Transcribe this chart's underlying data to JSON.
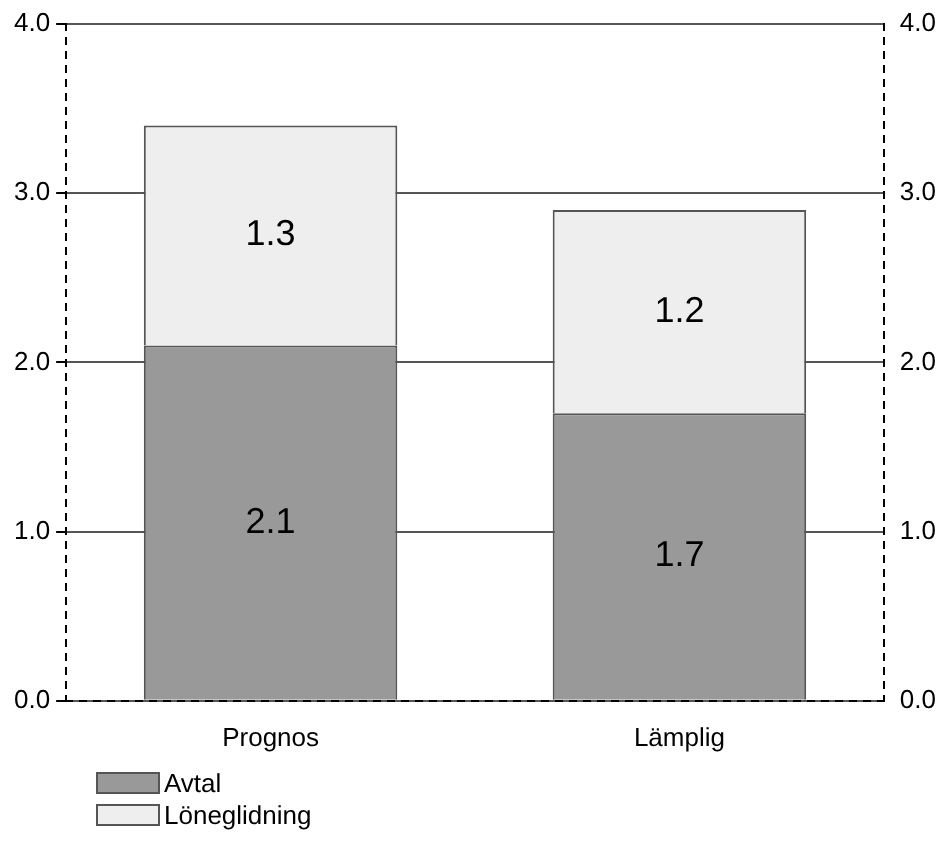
{
  "chart_data": {
    "type": "bar",
    "stacked": true,
    "categories": [
      "Prognos",
      "Lämplig"
    ],
    "series": [
      {
        "name": "Avtal",
        "color": "#999999",
        "values": [
          2.1,
          1.7
        ]
      },
      {
        "name": "Löneglidning",
        "color": "#eeeeee",
        "values": [
          1.3,
          1.2
        ]
      }
    ],
    "ylim": [
      0,
      4
    ],
    "yticks": [
      {
        "value": 0,
        "label": "0.0"
      },
      {
        "value": 1,
        "label": "1.0"
      },
      {
        "value": 2,
        "label": "2.0"
      },
      {
        "value": 3,
        "label": "3.0"
      },
      {
        "value": 4,
        "label": "4.0"
      }
    ],
    "y2lim": [
      0,
      4
    ],
    "y2ticks": [
      {
        "value": 0,
        "label": "0.0"
      },
      {
        "value": 1,
        "label": "1.0"
      },
      {
        "value": 2,
        "label": "2.0"
      },
      {
        "value": 3,
        "label": "3.0"
      },
      {
        "value": 4,
        "label": "4.0"
      }
    ],
    "grid": "y",
    "data_labels": true,
    "legend": "bottom left"
  }
}
